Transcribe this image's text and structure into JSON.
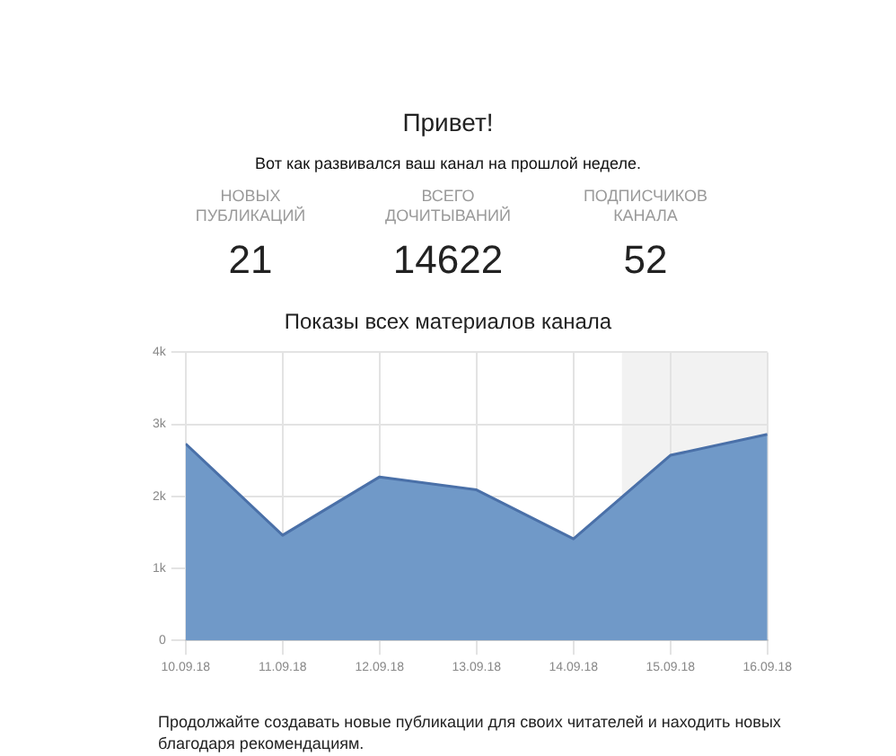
{
  "chart_data": [
    {
      "type": "other",
      "title": "Привет!",
      "subtitle": "Вот как развивался ваш канал на прошлой неделе.",
      "categories": [
        "НОВЫХ ПУБЛИКАЦИЙ",
        "ВСЕГО ДОЧИТЫВАНИЙ",
        "ПОДПИСЧИКОВ КАНАЛА"
      ],
      "values": [
        21,
        14622,
        52
      ],
      "data_labels": true
    },
    {
      "type": "area",
      "title": "Показы всех материалов канала",
      "x": [
        "--09-10",
        "--09-11",
        "--09-12",
        "--09-13",
        "--09-14",
        "--09-15",
        "--09-16"
      ],
      "series": [
        {
          "color": "#7099c8",
          "values": [
            2730,
            1460,
            2270,
            2090,
            1410,
            2570,
            2860
          ]
        }
      ],
      "xlim": [
        "--09-10",
        "--09-16"
      ],
      "xticks": [
        {
          "value": "--09-10",
          "label": "10.09.18"
        },
        {
          "value": "--09-11",
          "label": "11.09.18"
        },
        {
          "value": "--09-12",
          "label": "12.09.18"
        },
        {
          "value": "--09-13",
          "label": "13.09.18"
        },
        {
          "value": "--09-14",
          "label": "14.09.18"
        },
        {
          "value": "--09-15",
          "label": "15.09.18"
        },
        {
          "value": "--09-16",
          "label": "16.09.18"
        }
      ],
      "ylim": [
        0,
        4000
      ],
      "yticks": [
        0,
        {
          "value": 1000,
          "label": "1k"
        },
        {
          "value": 2000,
          "label": "2k"
        },
        {
          "value": 3000,
          "label": "3k"
        },
        {
          "value": 4000,
          "label": "4k"
        }
      ],
      "bands": [
        {
          "axis": "x",
          "from": "--09-14T12:00",
          "to": "--09-16",
          "color": "#f2f2f2"
        }
      ],
      "grid": true,
      "annotations": [
        "Продолжайте создавать новые публикации для своих читателей и находить новых благодаря рекомендациям."
      ]
    }
  ]
}
